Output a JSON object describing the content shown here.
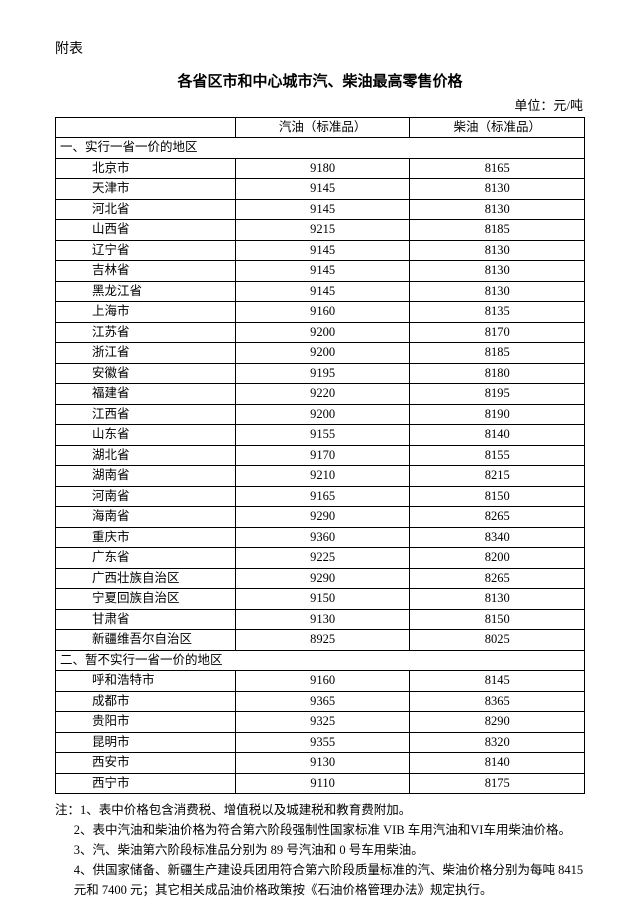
{
  "attachment_label": "附表",
  "title": "各省区市和中心城市汽、柴油最高零售价格",
  "unit_label": "单位：元/吨",
  "columns": {
    "region": "",
    "gasoline": "汽油（标准品）",
    "diesel": "柴油（标准品）"
  },
  "section1_label": "一、实行一省一价的地区",
  "section1_rows": [
    {
      "region": "北京市",
      "gasoline": "9180",
      "diesel": "8165"
    },
    {
      "region": "天津市",
      "gasoline": "9145",
      "diesel": "8130"
    },
    {
      "region": "河北省",
      "gasoline": "9145",
      "diesel": "8130"
    },
    {
      "region": "山西省",
      "gasoline": "9215",
      "diesel": "8185"
    },
    {
      "region": "辽宁省",
      "gasoline": "9145",
      "diesel": "8130"
    },
    {
      "region": "吉林省",
      "gasoline": "9145",
      "diesel": "8130"
    },
    {
      "region": "黑龙江省",
      "gasoline": "9145",
      "diesel": "8130"
    },
    {
      "region": "上海市",
      "gasoline": "9160",
      "diesel": "8135"
    },
    {
      "region": "江苏省",
      "gasoline": "9200",
      "diesel": "8170"
    },
    {
      "region": "浙江省",
      "gasoline": "9200",
      "diesel": "8185"
    },
    {
      "region": "安徽省",
      "gasoline": "9195",
      "diesel": "8180"
    },
    {
      "region": "福建省",
      "gasoline": "9220",
      "diesel": "8195"
    },
    {
      "region": "江西省",
      "gasoline": "9200",
      "diesel": "8190"
    },
    {
      "region": "山东省",
      "gasoline": "9155",
      "diesel": "8140"
    },
    {
      "region": "湖北省",
      "gasoline": "9170",
      "diesel": "8155"
    },
    {
      "region": "湖南省",
      "gasoline": "9210",
      "diesel": "8215"
    },
    {
      "region": "河南省",
      "gasoline": "9165",
      "diesel": "8150"
    },
    {
      "region": "海南省",
      "gasoline": "9290",
      "diesel": "8265"
    },
    {
      "region": "重庆市",
      "gasoline": "9360",
      "diesel": "8340"
    },
    {
      "region": "广东省",
      "gasoline": "9225",
      "diesel": "8200"
    },
    {
      "region": "广西壮族自治区",
      "gasoline": "9290",
      "diesel": "8265"
    },
    {
      "region": "宁夏回族自治区",
      "gasoline": "9150",
      "diesel": "8130"
    },
    {
      "region": "甘肃省",
      "gasoline": "9130",
      "diesel": "8150"
    },
    {
      "region": "新疆维吾尔自治区",
      "gasoline": "8925",
      "diesel": "8025"
    }
  ],
  "section2_label": "二、暂不实行一省一价的地区",
  "section2_rows": [
    {
      "region": "呼和浩特市",
      "gasoline": "9160",
      "diesel": "8145"
    },
    {
      "region": "成都市",
      "gasoline": "9365",
      "diesel": "8365"
    },
    {
      "region": "贵阳市",
      "gasoline": "9325",
      "diesel": "8290"
    },
    {
      "region": "昆明市",
      "gasoline": "9355",
      "diesel": "8320"
    },
    {
      "region": "西安市",
      "gasoline": "9130",
      "diesel": "8140"
    },
    {
      "region": "西宁市",
      "gasoline": "9110",
      "diesel": "8175"
    }
  ],
  "notes": [
    "注：1、表中价格包含消费税、增值税以及城建税和教育费附加。",
    "2、表中汽油和柴油价格为符合第六阶段强制性国家标准 VIB 车用汽油和VI车用柴油价格。",
    "3、汽、柴油第六阶段标准品分别为 89 号汽油和 0 号车用柴油。",
    "4、供国家储备、新疆生产建设兵团用符合第六阶段质量标准的汽、柴油价格分别为每吨 8415 元和 7400 元；其它相关成品油价格政策按《石油价格管理办法》规定执行。"
  ],
  "table_style": {
    "border_color": "#000000",
    "col_widths": [
      "34%",
      "33%",
      "33%"
    ]
  }
}
